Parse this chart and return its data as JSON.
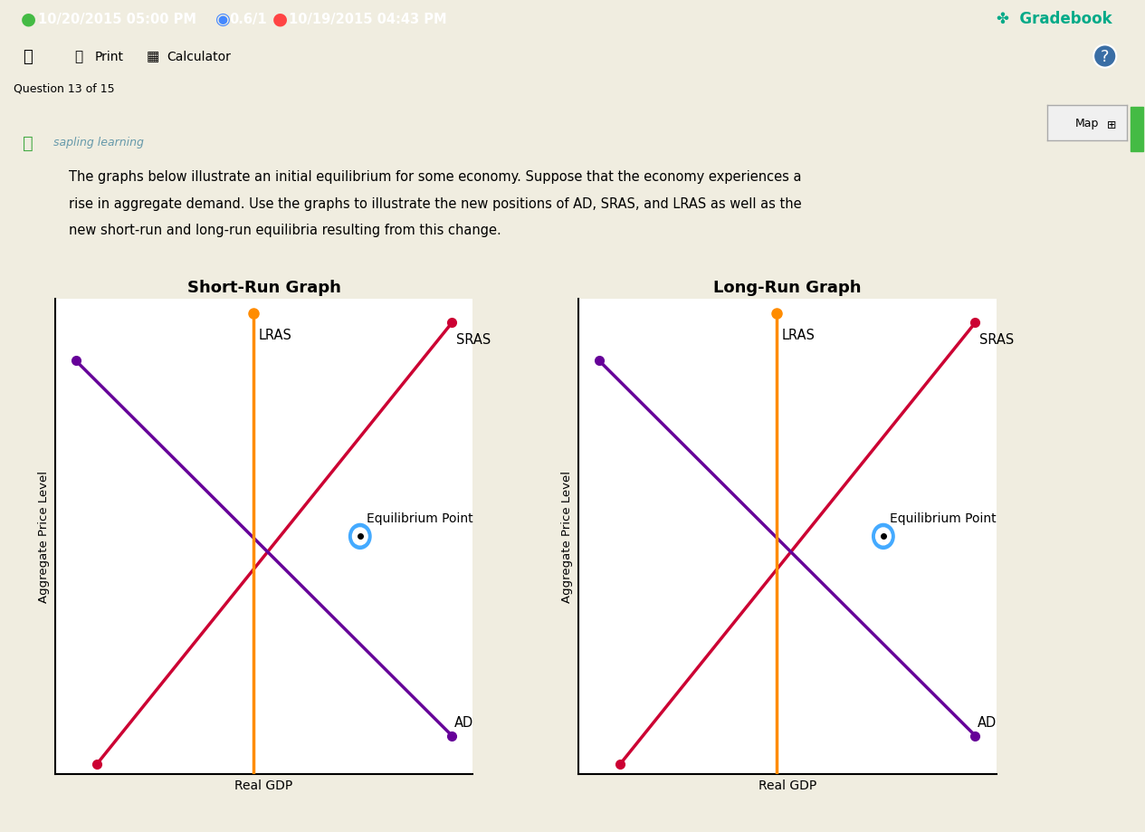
{
  "title_short": "Short-Run Graph",
  "title_long": "Long-Run Graph",
  "ylabel": "Aggregate Price Level",
  "xlabel": "Real GDP",
  "desc_line1": "The graphs below illustrate an initial equilibrium for some economy. Suppose that the economy experiences a",
  "desc_line2": "rise in aggregate demand. Use the graphs to illustrate the new positions of AD, SRAS, and LRAS as well as the",
  "desc_line3": "new short-run and long-run equilibria resulting from this change.",
  "sras_color": "#CC0033",
  "ad_color": "#660099",
  "lras_color": "#FF8C00",
  "eq_point_label": "Equilibrium Point",
  "lras_label": "LRAS",
  "sras_label": "SRAS",
  "ad_label": "AD",
  "bg_main": "#F0EDE0",
  "bg_white": "#FFFFFF",
  "grid_color": "#CCCCCC",
  "header_bg": "#3A6EA5",
  "toolbar_bg": "#D8D0BC",
  "tab_bg": "#B8B0A0",
  "scrollbar_bg": "#D0D0D0",
  "header_text_color": "#FFFFFF",
  "header_green_color": "#44BB44",
  "header_blue_color": "#2244FF",
  "header_red_color": "#FF3333",
  "gradebook_color": "#00AA88",
  "sapling_color": "#6699AA",
  "map_border": "#AAAAAA",
  "eq_circle_color": "#44AAFF",
  "header_date1": "10/20/2015 05:00 PM",
  "header_score": "0.6/1",
  "header_date2": "10/19/2015 04:43 PM",
  "header_gradebook": "Gradebook",
  "toolbar_print": "Print",
  "toolbar_calc": "Calculator",
  "question_tab": "Question 13 of 15",
  "sapling_text": "sapling learning",
  "map_text": "Map"
}
